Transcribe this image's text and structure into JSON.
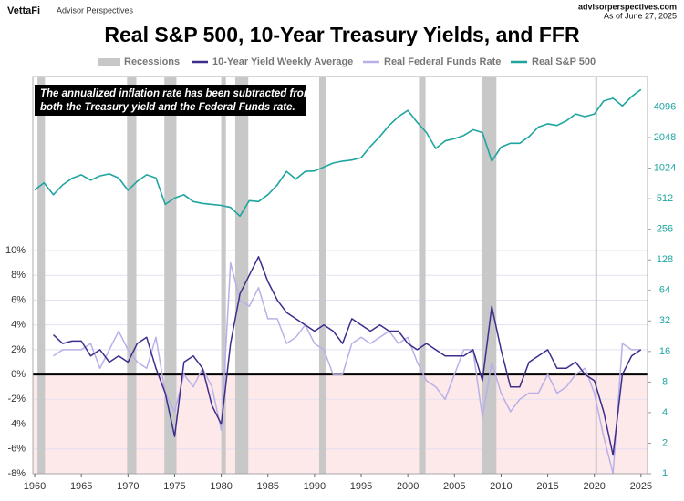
{
  "header": {
    "logo": "VettaFi",
    "brand": "Advisor Perspectives",
    "site": "advisorperspectives.com",
    "date": "As of June 27, 2025"
  },
  "chart_data": {
    "type": "line",
    "title": "Real S&P 500, 10-Year Treasury Yields, and FFR",
    "annotation": [
      "The annualized inflation rate has been subtracted from",
      "both the Treasury yield and the Federal Funds rate."
    ],
    "x": [
      1960,
      1961,
      1962,
      1963,
      1964,
      1965,
      1966,
      1967,
      1968,
      1969,
      1970,
      1971,
      1972,
      1973,
      1974,
      1975,
      1976,
      1977,
      1978,
      1979,
      1980,
      1981,
      1982,
      1983,
      1984,
      1985,
      1986,
      1987,
      1988,
      1989,
      1990,
      1991,
      1992,
      1993,
      1994,
      1995,
      1996,
      1997,
      1998,
      1999,
      2000,
      2001,
      2002,
      2003,
      2004,
      2005,
      2006,
      2007,
      2008,
      2009,
      2010,
      2011,
      2012,
      2013,
      2014,
      2015,
      2016,
      2017,
      2018,
      2019,
      2020,
      2021,
      2022,
      2023,
      2024,
      2025
    ],
    "xlim": [
      1959.8,
      2025.7
    ],
    "xticks": [
      1960,
      1965,
      1970,
      1975,
      1980,
      1985,
      1990,
      1995,
      2000,
      2005,
      2010,
      2015,
      2020,
      2025
    ],
    "ylim": [
      -8,
      10
    ],
    "yticks": [
      {
        "value": -8,
        "label": "-8%"
      },
      {
        "value": -6,
        "label": "-6%"
      },
      {
        "value": -4,
        "label": "-4%"
      },
      {
        "value": -2,
        "label": "-2%"
      },
      {
        "value": 0,
        "label": "0%"
      },
      {
        "value": 2,
        "label": "2%"
      },
      {
        "value": 4,
        "label": "4%"
      },
      {
        "value": 6,
        "label": "6%"
      },
      {
        "value": 8,
        "label": "8%"
      },
      {
        "value": 10,
        "label": "10%"
      }
    ],
    "y2lim": [
      1,
      8192
    ],
    "y2ticks": [
      1,
      2,
      4,
      8,
      16,
      32,
      64,
      128,
      256,
      512,
      1024,
      2048,
      4096
    ],
    "y2_log": true,
    "grid": true,
    "zero_line": true,
    "negative_shade": "#fde9ea",
    "legend": "top",
    "recessions": {
      "name": "Recessions",
      "color": "#c8c8c8",
      "periods": [
        [
          1960.3,
          1961.1
        ],
        [
          1969.9,
          1970.9
        ],
        [
          1973.9,
          1975.2
        ],
        [
          1980.0,
          1980.5
        ],
        [
          1981.5,
          1982.9
        ],
        [
          1990.5,
          1991.2
        ],
        [
          2001.2,
          2001.9
        ],
        [
          2007.9,
          2009.5
        ],
        [
          2020.1,
          2020.3
        ]
      ]
    },
    "series": [
      {
        "name": "10-Year Yield Weekly Average",
        "color": "#3d2e8c",
        "values": [
          null,
          null,
          3.2,
          2.5,
          2.7,
          2.7,
          1.5,
          2.0,
          1.0,
          1.5,
          1.0,
          2.5,
          3.0,
          0.5,
          -1.5,
          -5.0,
          1.0,
          1.5,
          0.5,
          -2.5,
          -4.0,
          2.5,
          6.5,
          8.0,
          9.5,
          7.5,
          6.0,
          5.0,
          4.5,
          4.0,
          3.5,
          4.0,
          3.5,
          2.5,
          4.5,
          4.0,
          3.5,
          4.0,
          3.5,
          3.5,
          2.5,
          2.0,
          2.5,
          2.0,
          1.5,
          1.5,
          1.5,
          2.0,
          -0.5,
          5.5,
          2.0,
          -1.0,
          -1.0,
          1.0,
          1.5,
          2.0,
          0.5,
          0.5,
          1.0,
          0.0,
          -0.5,
          -3.0,
          -6.5,
          0.0,
          1.5,
          2.0
        ]
      },
      {
        "name": "Real Federal Funds Rate",
        "color": "#b9b0e8",
        "values": [
          null,
          null,
          1.5,
          2.0,
          2.0,
          2.0,
          2.5,
          0.5,
          2.0,
          3.5,
          2.0,
          1.0,
          0.5,
          3.0,
          -1.5,
          -3.0,
          0.0,
          -1.0,
          0.5,
          -1.0,
          -4.5,
          9.0,
          6.0,
          5.5,
          7.0,
          4.5,
          4.5,
          2.5,
          3.0,
          4.0,
          2.5,
          2.0,
          0.0,
          0.0,
          2.5,
          3.0,
          2.5,
          3.0,
          3.5,
          2.5,
          3.0,
          1.0,
          -0.5,
          -1.0,
          -2.0,
          0.0,
          2.0,
          2.0,
          -3.5,
          1.0,
          -1.5,
          -3.0,
          -2.0,
          -1.5,
          -1.5,
          0.0,
          -1.5,
          -1.0,
          0.0,
          0.5,
          -1.5,
          -5.0,
          -8.0,
          2.5,
          2.0,
          2.0
        ]
      },
      {
        "name": "Real S&P 500",
        "color": "#1fa5a0",
        "axis": "y2",
        "values": [
          625,
          735,
          560,
          700,
          815,
          880,
          780,
          860,
          900,
          820,
          620,
          760,
          880,
          820,
          450,
          520,
          560,
          480,
          460,
          450,
          440,
          420,
          345,
          490,
          480,
          560,
          700,
          950,
          800,
          950,
          960,
          1050,
          1150,
          1200,
          1230,
          1300,
          1680,
          2100,
          2700,
          3300,
          3800,
          2900,
          2300,
          1600,
          1900,
          2000,
          2150,
          2450,
          2300,
          1200,
          1650,
          1800,
          1800,
          2100,
          2600,
          2800,
          2700,
          3000,
          3500,
          3300,
          3500,
          4700,
          5000,
          4200,
          5200,
          6100
        ]
      }
    ]
  }
}
